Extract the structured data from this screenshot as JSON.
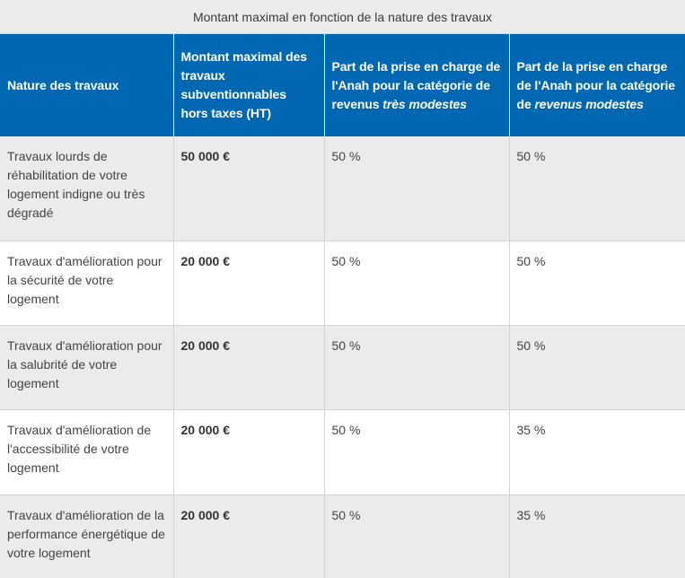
{
  "caption": "Montant maximal en fonction de la nature des travaux",
  "headers": {
    "nature": "Nature des travaux",
    "montant": "Montant maximal des travaux subventionnables hors taxes (HT)",
    "part_tres_modestes_prefix": "Part de la prise en charge de l'Anah pour la catégorie de revenus ",
    "part_tres_modestes_em": "très modestes",
    "part_modestes_prefix": "Part de la prise en charge de l'Anah pour la catégorie de ",
    "part_modestes_em": "revenus modestes"
  },
  "rows": [
    {
      "nature": "Travaux lourds de réhabilitation de votre logement indigne ou très dégradé",
      "montant": "50 000 €",
      "part_tres_modestes": "50 %",
      "part_modestes": "50 %"
    },
    {
      "nature": "Travaux d'amélioration pour la sécurité de votre logement",
      "montant": "20 000 €",
      "part_tres_modestes": "50 %",
      "part_modestes": "50 %"
    },
    {
      "nature": "Travaux d'amélioration pour la salubrité de votre logement",
      "montant": "20 000 €",
      "part_tres_modestes": "50 %",
      "part_modestes": "50 %"
    },
    {
      "nature": "Travaux d'amélioration de l'accessibilité de votre logement",
      "montant": "20 000 €",
      "part_tres_modestes": "50 %",
      "part_modestes": "35 %"
    },
    {
      "nature": "Travaux d'amélioration de la performance énergétique de votre logement",
      "montant": "20 000 €",
      "part_tres_modestes": "50 %",
      "part_modestes": "35 %"
    }
  ]
}
